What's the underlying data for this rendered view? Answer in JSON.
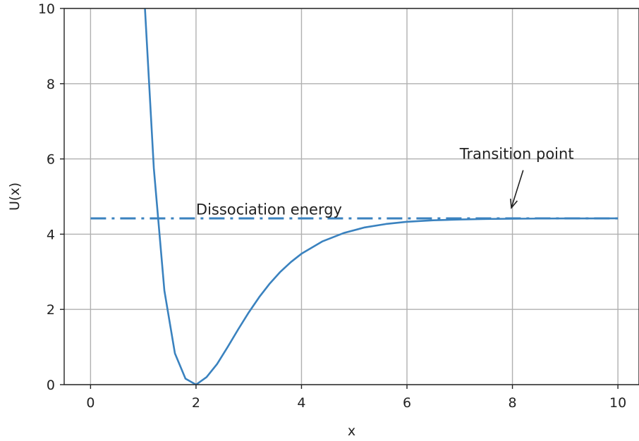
{
  "chart_data": {
    "type": "line",
    "xlabel": "x",
    "ylabel": "U(x)",
    "xlim": [
      -0.5,
      10.4
    ],
    "ylim": [
      0,
      10
    ],
    "xticks": [
      0,
      2,
      4,
      6,
      8,
      10
    ],
    "yticks": [
      0,
      2,
      4,
      6,
      8,
      10
    ],
    "grid": true,
    "series": [
      {
        "style": "solid",
        "color": "#3a82bf",
        "x": [
          1.0,
          1.2,
          1.4,
          1.6,
          1.8,
          2.0,
          2.2,
          2.4,
          2.6,
          2.8,
          3.0,
          3.2,
          3.4,
          3.6,
          3.8,
          4.0,
          4.4,
          4.8,
          5.2,
          5.6,
          6.0,
          6.5,
          7.0,
          7.5,
          8.0,
          8.5,
          9.0,
          9.5,
          10.0
        ],
        "y": [
          10.8,
          5.75,
          2.5,
          0.83,
          0.16,
          0.0,
          0.2,
          0.55,
          1.0,
          1.47,
          1.92,
          2.33,
          2.69,
          3.0,
          3.26,
          3.48,
          3.81,
          4.03,
          4.18,
          4.27,
          4.33,
          4.37,
          4.39,
          4.405,
          4.41,
          4.415,
          4.418,
          4.419,
          4.42
        ]
      },
      {
        "style": "dashdot",
        "color": "#3a82bf",
        "x": [
          0,
          10
        ],
        "y": [
          4.42,
          4.42
        ]
      }
    ],
    "annotations": [
      {
        "text": "Dissociation energy",
        "x": 2.0,
        "y": 4.52
      },
      {
        "text": "Transition point",
        "x": 7.0,
        "y": 6.0,
        "arrow_to": [
          7.98,
          4.7
        ]
      }
    ]
  }
}
